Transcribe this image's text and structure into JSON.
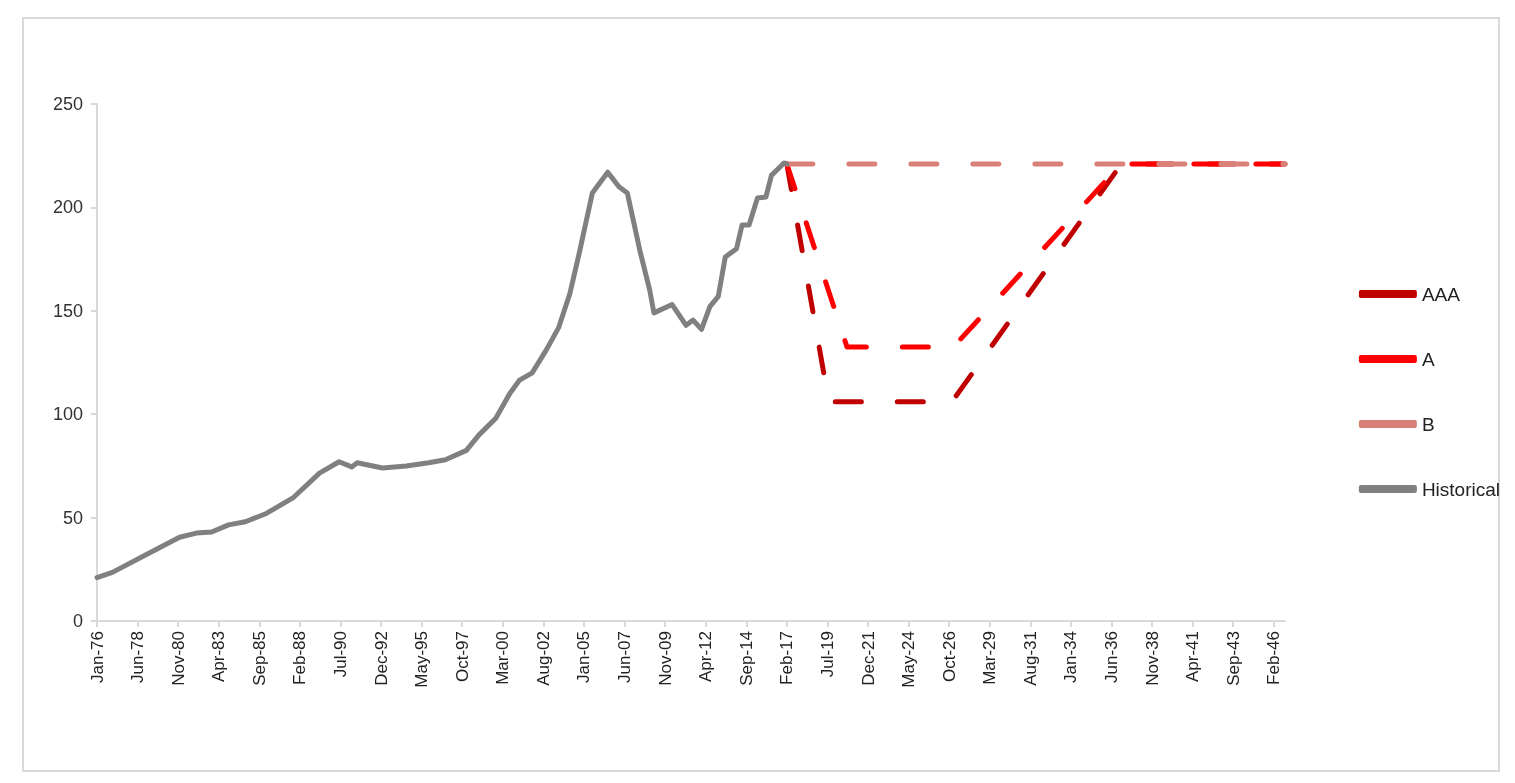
{
  "chart_data": {
    "type": "line",
    "series": [
      {
        "name": "AAA",
        "color": "#c00000",
        "line_style": "dashed",
        "x": [
          "2017-02",
          "2019-08",
          "2026-12",
          "2037-01",
          "2046-10"
        ],
        "values": [
          221,
          106,
          106,
          221,
          221
        ]
      },
      {
        "name": "A",
        "color": "#ff0000",
        "line_style": "dashed",
        "x": [
          "2017-02",
          "2020-09",
          "2027-01",
          "2037-01",
          "2046-10"
        ],
        "values": [
          221,
          132.5,
          132.5,
          221,
          221
        ]
      },
      {
        "name": "B",
        "color": "#d98078",
        "line_style": "dashed",
        "x": [
          "2017-02",
          "2046-10"
        ],
        "values": [
          221,
          221
        ]
      },
      {
        "name": "Historical",
        "color": "#808080",
        "line_style": "solid",
        "x": [
          "1976-01",
          "1976-12",
          "1978-12",
          "1980-12",
          "1981-12",
          "1982-11",
          "1983-11",
          "1984-11",
          "1986-02",
          "1987-09",
          "1989-04",
          "1990-06",
          "1991-03",
          "1991-07",
          "1993-01",
          "1994-06",
          "1995-10",
          "1996-10",
          "1998-01",
          "1998-10",
          "1999-10",
          "2000-08",
          "2001-03",
          "2001-12",
          "2002-10",
          "2003-07",
          "2004-03",
          "2004-10",
          "2005-07",
          "2006-06",
          "2007-02",
          "2007-08",
          "2008-05",
          "2008-12",
          "2009-03",
          "2010-04",
          "2011-02",
          "2011-07",
          "2012-01",
          "2012-07",
          "2013-01",
          "2013-06",
          "2014-02",
          "2014-06",
          "2014-11",
          "2015-05",
          "2015-11",
          "2016-03",
          "2016-12",
          "2017-02"
        ],
        "values": [
          21,
          23.5,
          32,
          40.5,
          42.5,
          43,
          46.5,
          48,
          52,
          59.5,
          71.5,
          77,
          74.5,
          76.5,
          74,
          75,
          76.5,
          78,
          82.5,
          90,
          98,
          110,
          116.5,
          120,
          131,
          142,
          158.5,
          179,
          207,
          217,
          210,
          207,
          179,
          160,
          149,
          153,
          143,
          145.5,
          141,
          152,
          157,
          176,
          180,
          191.5,
          191.5,
          204.5,
          205,
          215.5,
          221.5,
          221
        ]
      }
    ],
    "xlim": [
      "1976-01",
      "2046-10"
    ],
    "xticks": [
      {
        "value": "1976-01",
        "label": "Jan-76"
      },
      {
        "value": "1978-06",
        "label": "Jun-78"
      },
      {
        "value": "1980-11",
        "label": "Nov-80"
      },
      {
        "value": "1983-04",
        "label": "Apr-83"
      },
      {
        "value": "1985-09",
        "label": "Sep-85"
      },
      {
        "value": "1988-02",
        "label": "Feb-88"
      },
      {
        "value": "1990-07",
        "label": "Jul-90"
      },
      {
        "value": "1992-12",
        "label": "Dec-92"
      },
      {
        "value": "1995-05",
        "label": "May-95"
      },
      {
        "value": "1997-10",
        "label": "Oct-97"
      },
      {
        "value": "2000-03",
        "label": "Mar-00"
      },
      {
        "value": "2002-08",
        "label": "Aug-02"
      },
      {
        "value": "2005-01",
        "label": "Jan-05"
      },
      {
        "value": "2007-06",
        "label": "Jun-07"
      },
      {
        "value": "2009-11",
        "label": "Nov-09"
      },
      {
        "value": "2012-04",
        "label": "Apr-12"
      },
      {
        "value": "2014-09",
        "label": "Sep-14"
      },
      {
        "value": "2017-02",
        "label": "Feb-17"
      },
      {
        "value": "2019-07",
        "label": "Jul-19"
      },
      {
        "value": "2021-12",
        "label": "Dec-21"
      },
      {
        "value": "2024-05",
        "label": "May-24"
      },
      {
        "value": "2026-10",
        "label": "Oct-26"
      },
      {
        "value": "2029-03",
        "label": "Mar-29"
      },
      {
        "value": "2031-08",
        "label": "Aug-31"
      },
      {
        "value": "2034-01",
        "label": "Jan-34"
      },
      {
        "value": "2036-06",
        "label": "Jun-36"
      },
      {
        "value": "2038-11",
        "label": "Nov-38"
      },
      {
        "value": "2041-04",
        "label": "Apr-41"
      },
      {
        "value": "2043-09",
        "label": "Sep-43"
      },
      {
        "value": "2046-02",
        "label": "Feb-46"
      }
    ],
    "ylim": [
      0,
      250
    ],
    "yticks": [
      0,
      50,
      100,
      150,
      200,
      250
    ],
    "grid": false,
    "legend": "right",
    "marker": "none"
  }
}
